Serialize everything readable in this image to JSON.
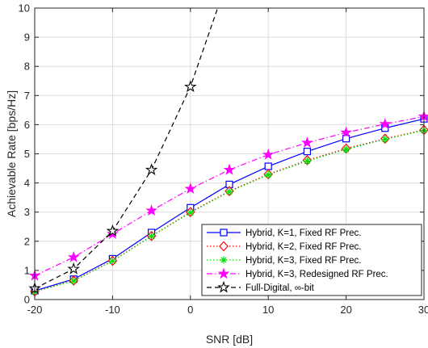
{
  "chart_data": {
    "type": "line",
    "xlabel": "SNR [dB]",
    "ylabel": "Achievable Rate [bps/Hz]",
    "xlim": [
      -20,
      30
    ],
    "ylim": [
      0,
      10
    ],
    "xticks": [
      -20,
      -10,
      0,
      10,
      20,
      30
    ],
    "yticks": [
      0,
      1,
      2,
      3,
      4,
      5,
      6,
      7,
      8,
      9,
      10
    ],
    "xtick_labels": [
      "-20",
      "-10",
      "0",
      "10",
      "20",
      "30"
    ],
    "ytick_labels": [
      "0",
      "1",
      "2",
      "3",
      "4",
      "5",
      "6",
      "7",
      "8",
      "9",
      "10"
    ],
    "grid": true,
    "legend_position": "bottom-right",
    "series": [
      {
        "name": "Hybrid, K=1, Fixed RF Prec.",
        "color": "#0000ff",
        "line_style": "solid",
        "marker": "square",
        "x": [
          -20,
          -15,
          -10,
          -5,
          0,
          5,
          10,
          15,
          20,
          25,
          30
        ],
        "y": [
          0.3,
          0.7,
          1.4,
          2.3,
          3.15,
          3.95,
          4.57,
          5.08,
          5.52,
          5.88,
          6.2
        ]
      },
      {
        "name": "Hybrid, K=2, Fixed RF Prec.",
        "color": "#ff0000",
        "line_style": "dotted",
        "marker": "diamond",
        "x": [
          -20,
          -15,
          -10,
          -5,
          0,
          5,
          10,
          15,
          20,
          25,
          30
        ],
        "y": [
          0.28,
          0.65,
          1.33,
          2.18,
          3.0,
          3.72,
          4.3,
          4.78,
          5.18,
          5.52,
          5.82
        ]
      },
      {
        "name": "Hybrid, K=3, Fixed RF Prec.",
        "color": "#00dd00",
        "line_style": "dotted",
        "marker": "asterisk",
        "x": [
          -20,
          -15,
          -10,
          -5,
          0,
          5,
          10,
          15,
          20,
          25,
          30
        ],
        "y": [
          0.27,
          0.64,
          1.32,
          2.17,
          2.98,
          3.7,
          4.28,
          4.75,
          5.15,
          5.5,
          5.8
        ]
      },
      {
        "name": "Hybrid, K=3, Redesigned RF Prec.",
        "color": "#ff00ff",
        "line_style": "dashdot",
        "marker": "star",
        "x": [
          -20,
          -15,
          -10,
          -5,
          0,
          5,
          10,
          15,
          20,
          25,
          30
        ],
        "y": [
          0.82,
          1.45,
          2.25,
          3.05,
          3.8,
          4.45,
          4.97,
          5.38,
          5.73,
          6.02,
          6.28
        ]
      },
      {
        "name": "Full-Digital, ∞-bit",
        "color": "#000000",
        "line_style": "dashed",
        "marker": "pentagram",
        "x": [
          -20,
          -15,
          -10,
          -5,
          0,
          3.5
        ],
        "y": [
          0.38,
          1.05,
          2.35,
          4.45,
          7.3,
          10.0
        ],
        "marker_count": 5
      }
    ]
  }
}
